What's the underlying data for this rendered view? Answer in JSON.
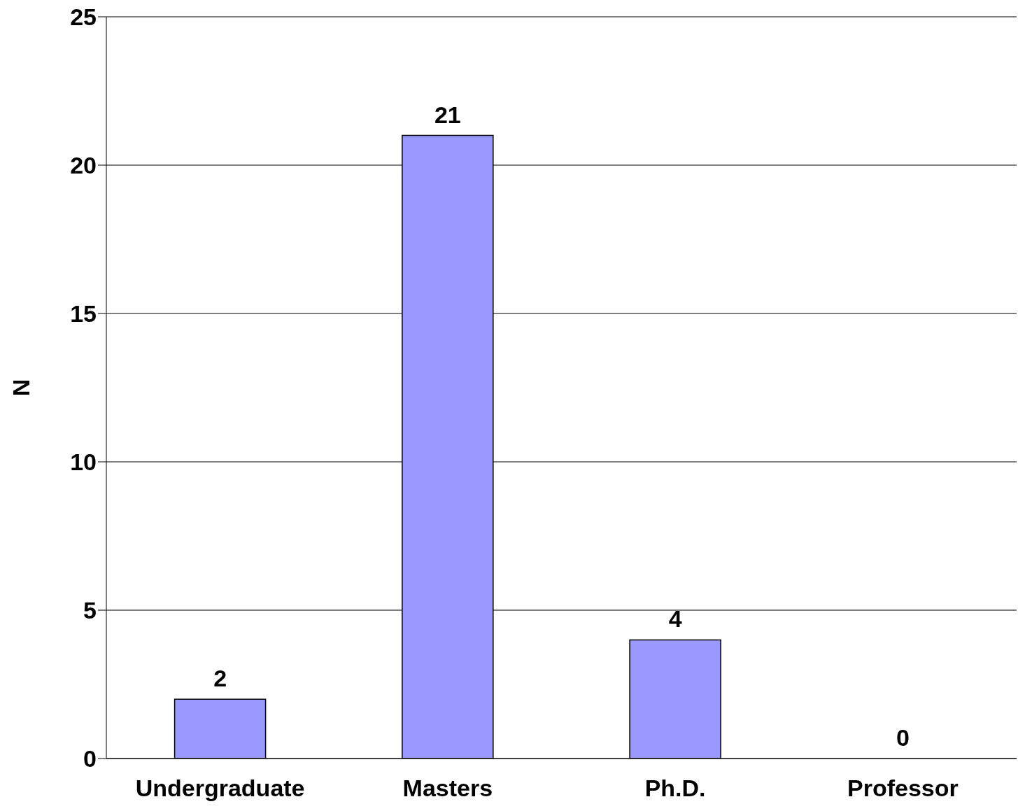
{
  "chart_data": {
    "type": "bar",
    "ylabel": "N",
    "categories": [
      "Undergraduate",
      "Masters",
      "Ph.D.",
      "Professor"
    ],
    "values": [
      2,
      21,
      4,
      0
    ],
    "color": "#9999ff",
    "ylim": [
      0,
      25
    ],
    "yticks": [
      0,
      5,
      10,
      15,
      20,
      25
    ],
    "grid": "y",
    "data_labels": true
  }
}
